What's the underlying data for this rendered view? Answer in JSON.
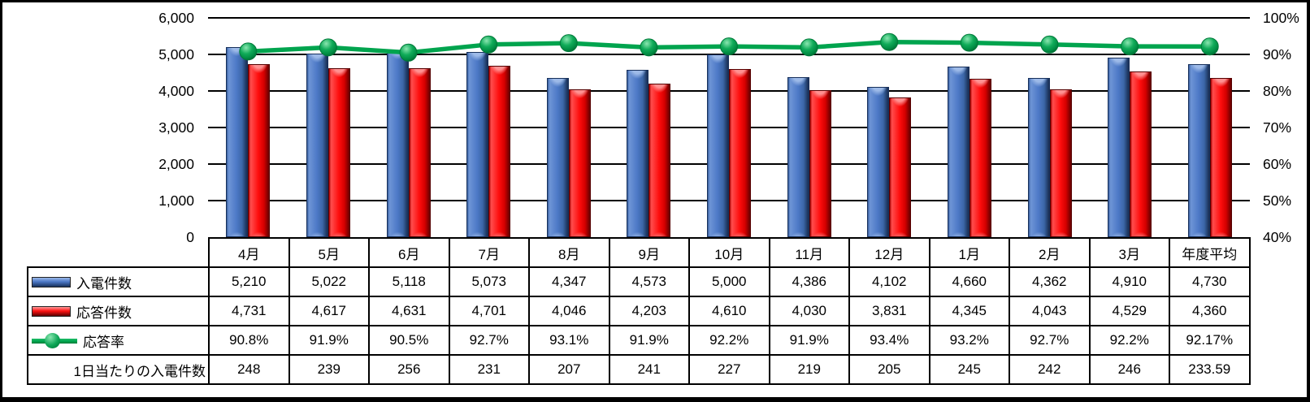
{
  "chart_data": {
    "type": "combo",
    "categories": [
      "4月",
      "5月",
      "6月",
      "7月",
      "8月",
      "9月",
      "10月",
      "11月",
      "12月",
      "1月",
      "2月",
      "3月",
      "年度平均"
    ],
    "series": [
      {
        "name": "入電件数",
        "type": "bar",
        "color": "#4472C4",
        "axis": "left",
        "values": [
          5210,
          5022,
          5118,
          5073,
          4347,
          4573,
          5000,
          4386,
          4102,
          4660,
          4362,
          4910,
          4730
        ]
      },
      {
        "name": "応答件数",
        "type": "bar",
        "color": "#FE0D0D",
        "axis": "left",
        "values": [
          4731,
          4617,
          4631,
          4701,
          4046,
          4203,
          4610,
          4030,
          3831,
          4345,
          4043,
          4529,
          4360
        ]
      },
      {
        "name": "応答率",
        "type": "line",
        "color": "#00A44E",
        "axis": "right",
        "values": [
          90.8,
          91.9,
          90.5,
          92.7,
          93.1,
          91.9,
          92.2,
          91.9,
          93.4,
          93.2,
          92.7,
          92.2,
          92.17
        ]
      }
    ],
    "left_axis": {
      "min": 0,
      "max": 6000,
      "step": 1000,
      "labels": [
        "6,000",
        "5,000",
        "4,000",
        "3,000",
        "2,000",
        "1,000",
        "0"
      ]
    },
    "right_axis": {
      "min": 40,
      "max": 100,
      "step": 10,
      "labels": [
        "100%",
        "90%",
        "80%",
        "70%",
        "60%",
        "50%",
        "40%"
      ]
    },
    "grid": true,
    "legend_position": "table-left"
  },
  "table": {
    "row_labels": [
      "入電件数",
      "応答件数",
      "応答率",
      "1日当たりの入電件数"
    ],
    "rows": [
      [
        "5,210",
        "5,022",
        "5,118",
        "5,073",
        "4,347",
        "4,573",
        "5,000",
        "4,386",
        "4,102",
        "4,660",
        "4,362",
        "4,910",
        "4,730"
      ],
      [
        "4,731",
        "4,617",
        "4,631",
        "4,701",
        "4,046",
        "4,203",
        "4,610",
        "4,030",
        "3,831",
        "4,345",
        "4,043",
        "4,529",
        "4,360"
      ],
      [
        "90.8%",
        "91.9%",
        "90.5%",
        "92.7%",
        "93.1%",
        "91.9%",
        "92.2%",
        "91.9%",
        "93.4%",
        "93.2%",
        "92.7%",
        "92.2%",
        "92.17%"
      ],
      [
        "248",
        "239",
        "256",
        "231",
        "207",
        "241",
        "227",
        "219",
        "205",
        "245",
        "242",
        "246",
        "233.59"
      ]
    ]
  },
  "colors": {
    "bar_incoming": "#4472C4",
    "bar_answered": "#FE0D0D",
    "line_rate": "#00A44E",
    "grid": "#000000",
    "border": "#000000",
    "background": "#FFFFFF"
  }
}
